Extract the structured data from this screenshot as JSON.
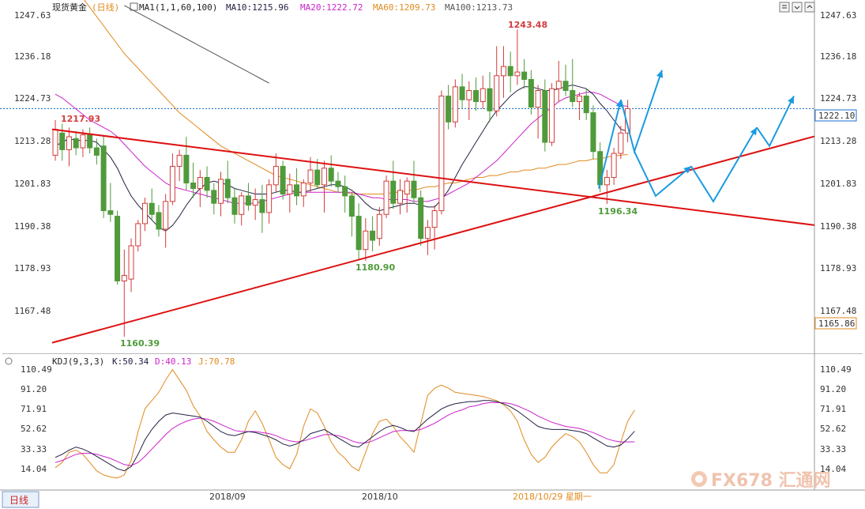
{
  "header": {
    "symbol": "现货黄金",
    "period": "(日线)",
    "ma_set": "MA1(1,1,60,100)",
    "ma10": "MA10:1215.96",
    "ma20": "MA20:1222.72",
    "ma60": "MA60:1209.73",
    "ma100": "MA100:1213.73"
  },
  "kdj_header": {
    "name": "KDJ(9,3,3)",
    "k": "K:50.34",
    "d": "D:40.13",
    "j": "J:70.78"
  },
  "price_axis_labels": [
    "1247.63",
    "1236.18",
    "1224.73",
    "1213.28",
    "1201.83",
    "1190.38",
    "1178.93",
    "1167.48"
  ],
  "current_price": "1222.10",
  "lower_price_tag": "1165.86",
  "kdj_axis_labels": [
    "110.49",
    "91.20",
    "71.91",
    "52.62",
    "33.33",
    "14.04"
  ],
  "date_labels": [
    "2018/09",
    "2018/10"
  ],
  "cursor_date": "2018/10/29 星期一",
  "bottom_tab": "日线",
  "watermark": "FX678 汇通网",
  "annotations": {
    "peak": "1243.48",
    "left_high": "1217.93",
    "left_low": "1160.39",
    "mid_low": "1180.90",
    "recent_low": "1196.34"
  },
  "colors": {
    "up": "#d23c3c",
    "down": "#4f9a3a",
    "ma10": "#222244",
    "ma20": "#cc22cc",
    "ma60": "#e08a1e",
    "ma100": "#555555",
    "trendline": "#dd1111",
    "forecast": "#1a9be0",
    "current_line": "#1a6fd0"
  },
  "chart_data": {
    "type": "candlestick",
    "price_ylim": [
      1158,
      1250
    ],
    "candles": [
      {
        "o": 1209.5,
        "h": 1219.0,
        "l": 1208.0,
        "c": 1216.5
      },
      {
        "o": 1215.5,
        "h": 1218.0,
        "l": 1208.0,
        "c": 1211.0
      },
      {
        "o": 1211.0,
        "h": 1217.0,
        "l": 1206.5,
        "c": 1214.5
      },
      {
        "o": 1214.0,
        "h": 1216.0,
        "l": 1209.5,
        "c": 1211.5
      },
      {
        "o": 1211.5,
        "h": 1216.5,
        "l": 1209.0,
        "c": 1215.0
      },
      {
        "o": 1215.0,
        "h": 1217.0,
        "l": 1210.0,
        "c": 1211.5
      },
      {
        "o": 1211.5,
        "h": 1214.0,
        "l": 1207.0,
        "c": 1209.5
      },
      {
        "o": 1212.0,
        "h": 1215.0,
        "l": 1192.5,
        "c": 1194.5
      },
      {
        "o": 1194.5,
        "h": 1202.0,
        "l": 1191.5,
        "c": 1193.5
      },
      {
        "o": 1193.0,
        "h": 1194.5,
        "l": 1174.5,
        "c": 1175.5
      },
      {
        "o": 1175.5,
        "h": 1184.0,
        "l": 1160.4,
        "c": 1177.0
      },
      {
        "o": 1176.0,
        "h": 1187.0,
        "l": 1172.5,
        "c": 1185.0
      },
      {
        "o": 1185.0,
        "h": 1192.0,
        "l": 1183.5,
        "c": 1191.0
      },
      {
        "o": 1191.0,
        "h": 1198.0,
        "l": 1189.0,
        "c": 1196.5
      },
      {
        "o": 1196.5,
        "h": 1200.5,
        "l": 1192.0,
        "c": 1193.5
      },
      {
        "o": 1194.0,
        "h": 1196.0,
        "l": 1187.5,
        "c": 1189.5
      },
      {
        "o": 1189.5,
        "h": 1199.0,
        "l": 1184.5,
        "c": 1197.0
      },
      {
        "o": 1197.0,
        "h": 1210.0,
        "l": 1196.0,
        "c": 1206.5
      },
      {
        "o": 1206.5,
        "h": 1211.0,
        "l": 1202.5,
        "c": 1209.5
      },
      {
        "o": 1209.5,
        "h": 1214.5,
        "l": 1200.0,
        "c": 1202.0
      },
      {
        "o": 1202.0,
        "h": 1207.5,
        "l": 1198.0,
        "c": 1200.5
      },
      {
        "o": 1200.5,
        "h": 1205.5,
        "l": 1195.5,
        "c": 1203.5
      },
      {
        "o": 1203.5,
        "h": 1206.5,
        "l": 1198.0,
        "c": 1200.0
      },
      {
        "o": 1200.0,
        "h": 1202.0,
        "l": 1193.5,
        "c": 1196.5
      },
      {
        "o": 1196.5,
        "h": 1205.0,
        "l": 1193.0,
        "c": 1203.0
      },
      {
        "o": 1203.0,
        "h": 1208.0,
        "l": 1196.5,
        "c": 1198.0
      },
      {
        "o": 1198.0,
        "h": 1200.5,
        "l": 1191.0,
        "c": 1193.5
      },
      {
        "o": 1193.5,
        "h": 1199.5,
        "l": 1190.5,
        "c": 1198.5
      },
      {
        "o": 1198.5,
        "h": 1202.0,
        "l": 1194.5,
        "c": 1196.0
      },
      {
        "o": 1196.0,
        "h": 1200.5,
        "l": 1192.0,
        "c": 1197.5
      },
      {
        "o": 1197.5,
        "h": 1201.5,
        "l": 1188.5,
        "c": 1194.0
      },
      {
        "o": 1194.0,
        "h": 1203.0,
        "l": 1191.0,
        "c": 1201.5
      },
      {
        "o": 1201.5,
        "h": 1210.0,
        "l": 1199.5,
        "c": 1206.5
      },
      {
        "o": 1206.5,
        "h": 1208.0,
        "l": 1197.5,
        "c": 1199.0
      },
      {
        "o": 1199.0,
        "h": 1204.5,
        "l": 1194.0,
        "c": 1201.5
      },
      {
        "o": 1201.5,
        "h": 1206.0,
        "l": 1196.0,
        "c": 1198.5
      },
      {
        "o": 1198.5,
        "h": 1203.0,
        "l": 1195.5,
        "c": 1202.0
      },
      {
        "o": 1202.0,
        "h": 1209.0,
        "l": 1199.5,
        "c": 1205.5
      },
      {
        "o": 1205.5,
        "h": 1208.5,
        "l": 1200.5,
        "c": 1201.5
      },
      {
        "o": 1201.5,
        "h": 1208.0,
        "l": 1194.0,
        "c": 1206.0
      },
      {
        "o": 1206.0,
        "h": 1209.5,
        "l": 1201.0,
        "c": 1202.5
      },
      {
        "o": 1202.5,
        "h": 1205.0,
        "l": 1199.5,
        "c": 1201.0
      },
      {
        "o": 1201.0,
        "h": 1204.0,
        "l": 1194.0,
        "c": 1198.5
      },
      {
        "o": 1198.5,
        "h": 1199.5,
        "l": 1187.5,
        "c": 1193.0
      },
      {
        "o": 1193.0,
        "h": 1196.5,
        "l": 1181.5,
        "c": 1184.0
      },
      {
        "o": 1184.0,
        "h": 1192.5,
        "l": 1180.9,
        "c": 1189.0
      },
      {
        "o": 1189.0,
        "h": 1193.0,
        "l": 1183.5,
        "c": 1186.5
      },
      {
        "o": 1187.0,
        "h": 1195.5,
        "l": 1185.0,
        "c": 1193.5
      },
      {
        "o": 1193.5,
        "h": 1204.0,
        "l": 1192.5,
        "c": 1202.5
      },
      {
        "o": 1202.5,
        "h": 1208.0,
        "l": 1195.0,
        "c": 1196.5
      },
      {
        "o": 1196.5,
        "h": 1203.0,
        "l": 1193.5,
        "c": 1200.0
      },
      {
        "o": 1199.0,
        "h": 1203.5,
        "l": 1194.0,
        "c": 1202.5
      },
      {
        "o": 1202.5,
        "h": 1208.0,
        "l": 1196.5,
        "c": 1198.0
      },
      {
        "o": 1198.0,
        "h": 1200.0,
        "l": 1185.0,
        "c": 1187.0
      },
      {
        "o": 1187.0,
        "h": 1192.0,
        "l": 1182.5,
        "c": 1190.0
      },
      {
        "o": 1190.0,
        "h": 1196.0,
        "l": 1184.0,
        "c": 1194.5
      },
      {
        "o": 1194.5,
        "h": 1227.0,
        "l": 1193.5,
        "c": 1225.5
      },
      {
        "o": 1225.5,
        "h": 1228.5,
        "l": 1216.5,
        "c": 1218.5
      },
      {
        "o": 1218.5,
        "h": 1230.0,
        "l": 1217.0,
        "c": 1228.0
      },
      {
        "o": 1228.0,
        "h": 1231.5,
        "l": 1222.0,
        "c": 1224.5
      },
      {
        "o": 1224.5,
        "h": 1229.5,
        "l": 1219.0,
        "c": 1227.0
      },
      {
        "o": 1227.0,
        "h": 1230.5,
        "l": 1221.5,
        "c": 1224.0
      },
      {
        "o": 1224.0,
        "h": 1231.0,
        "l": 1222.0,
        "c": 1227.5
      },
      {
        "o": 1227.5,
        "h": 1232.0,
        "l": 1218.5,
        "c": 1221.5
      },
      {
        "o": 1221.5,
        "h": 1239.0,
        "l": 1220.0,
        "c": 1231.0
      },
      {
        "o": 1231.0,
        "h": 1239.0,
        "l": 1225.0,
        "c": 1233.5
      },
      {
        "o": 1233.5,
        "h": 1237.5,
        "l": 1226.5,
        "c": 1231.0
      },
      {
        "o": 1231.0,
        "h": 1243.5,
        "l": 1228.5,
        "c": 1232.0
      },
      {
        "o": 1232.0,
        "h": 1235.5,
        "l": 1227.5,
        "c": 1230.0
      },
      {
        "o": 1230.0,
        "h": 1232.5,
        "l": 1220.5,
        "c": 1222.5
      },
      {
        "o": 1222.5,
        "h": 1228.5,
        "l": 1214.0,
        "c": 1227.0
      },
      {
        "o": 1227.0,
        "h": 1230.0,
        "l": 1210.5,
        "c": 1213.0
      },
      {
        "o": 1213.0,
        "h": 1229.0,
        "l": 1212.0,
        "c": 1227.5
      },
      {
        "o": 1227.5,
        "h": 1235.0,
        "l": 1224.0,
        "c": 1229.5
      },
      {
        "o": 1229.5,
        "h": 1234.0,
        "l": 1225.5,
        "c": 1227.0
      },
      {
        "o": 1227.0,
        "h": 1235.5,
        "l": 1222.5,
        "c": 1224.0
      },
      {
        "o": 1224.0,
        "h": 1226.5,
        "l": 1219.0,
        "c": 1225.5
      },
      {
        "o": 1225.5,
        "h": 1227.5,
        "l": 1219.0,
        "c": 1221.0
      },
      {
        "o": 1221.0,
        "h": 1223.0,
        "l": 1208.5,
        "c": 1210.5
      },
      {
        "o": 1210.5,
        "h": 1213.0,
        "l": 1199.5,
        "c": 1201.5
      },
      {
        "o": 1201.5,
        "h": 1205.5,
        "l": 1196.3,
        "c": 1203.5
      },
      {
        "o": 1203.5,
        "h": 1211.5,
        "l": 1201.5,
        "c": 1210.0
      },
      {
        "o": 1210.0,
        "h": 1217.5,
        "l": 1208.5,
        "c": 1215.5
      },
      {
        "o": 1215.5,
        "h": 1224.5,
        "l": 1213.0,
        "c": 1222.1
      }
    ],
    "ma10": [
      1212,
      1213,
      1214,
      1213.5,
      1213.5,
      1213.5,
      1213,
      1211,
      1209,
      1206,
      1202,
      1198.5,
      1196,
      1194,
      1192,
      1190,
      1189,
      1190.5,
      1193,
      1196,
      1198.5,
      1200.5,
      1202,
      1202.5,
      1202,
      1201.5,
      1200.5,
      1200,
      1199.5,
      1199,
      1199,
      1199,
      1199.5,
      1200,
      1200,
      1199.5,
      1199.5,
      1200,
      1200.5,
      1201,
      1201.5,
      1201.5,
      1201,
      1200,
      1198.5,
      1196.5,
      1195,
      1194.5,
      1195,
      1195.5,
      1196,
      1196.5,
      1196.5,
      1196,
      1195.5,
      1195.5,
      1197.5,
      1200,
      1203.5,
      1207,
      1210,
      1213,
      1216,
      1219,
      1221.5,
      1223.5,
      1225.5,
      1227,
      1228,
      1228,
      1227.5,
      1227,
      1227,
      1227.5,
      1228,
      1228.5,
      1228,
      1227.5,
      1226,
      1223.5,
      1221.5,
      1219,
      1216.5,
      1216
    ],
    "ma20": [
      1226,
      1225,
      1223.5,
      1222,
      1220.5,
      1219,
      1218,
      1217,
      1216,
      1214.5,
      1212.5,
      1210.5,
      1208.5,
      1206.5,
      1205,
      1203.5,
      1202,
      1201,
      1200.5,
      1200,
      1199.5,
      1199,
      1198.5,
      1198,
      1197.5,
      1197,
      1196.5,
      1196.5,
      1196.5,
      1196.5,
      1197,
      1197.5,
      1198,
      1198.5,
      1199,
      1199.5,
      1199.5,
      1199.5,
      1199.5,
      1199.5,
      1199.5,
      1199.5,
      1199.5,
      1199.5,
      1199,
      1198.5,
      1198,
      1198,
      1197.5,
      1197.5,
      1197.5,
      1197.5,
      1197,
      1197,
      1197,
      1197.5,
      1198,
      1199,
      1200,
      1201,
      1202,
      1203.5,
      1205,
      1206.5,
      1208,
      1210,
      1212,
      1214,
      1216,
      1218,
      1219.5,
      1221,
      1222.5,
      1224,
      1225,
      1225.5,
      1226,
      1226.5,
      1226.5,
      1226,
      1225,
      1224,
      1223,
      1222.7
    ],
    "ma60": [
      1262,
      1259.5,
      1257,
      1254.5,
      1252,
      1249.5,
      1247,
      1244.5,
      1242,
      1239.5,
      1237,
      1235,
      1233,
      1231,
      1229,
      1227,
      1225,
      1223,
      1221,
      1219.5,
      1218,
      1216.5,
      1215,
      1213.5,
      1212,
      1211,
      1210,
      1209,
      1208,
      1207,
      1206,
      1205,
      1204,
      1203.5,
      1203,
      1202.5,
      1202,
      1201.5,
      1201,
      1200.5,
      1200,
      1199.5,
      1199.5,
      1199,
      1199,
      1199,
      1199,
      1199,
      1199,
      1199.5,
      1199.5,
      1200,
      1200,
      1200.5,
      1201,
      1201,
      1201.5,
      1202,
      1202,
      1202.5,
      1203,
      1203.5,
      1203.5,
      1204,
      1204,
      1204.5,
      1205,
      1205,
      1205.5,
      1205.5,
      1206,
      1206,
      1206.5,
      1207,
      1207,
      1207.5,
      1208,
      1208,
      1208.5,
      1208.5,
      1209,
      1209.3,
      1209.5,
      1209.7
    ],
    "ma100": [
      1250,
      1249,
      1248,
      1247,
      1246,
      1245,
      1244,
      1243,
      1242,
      1241,
      1240,
      1239,
      1238,
      1237,
      1236,
      1235,
      1234,
      1233,
      1232,
      1231,
      1230,
      1229
    ],
    "kdj_ylim": [
      0,
      115
    ],
    "K": [
      25,
      28,
      32,
      35,
      33,
      30,
      26,
      22,
      18,
      14,
      12,
      16,
      28,
      42,
      52,
      60,
      66,
      68,
      67,
      66,
      65,
      64,
      60,
      55,
      50,
      47,
      46,
      48,
      50,
      49,
      47,
      45,
      42,
      38,
      36,
      38,
      42,
      48,
      50,
      52,
      48,
      44,
      40,
      36,
      35,
      40,
      45,
      50,
      54,
      56,
      54,
      51,
      50,
      56,
      62,
      67,
      72,
      75,
      77,
      78,
      79,
      79,
      80,
      80,
      79,
      77,
      74,
      70,
      65,
      60,
      55,
      53,
      52,
      52,
      52,
      51,
      50,
      48,
      44,
      40,
      36,
      35,
      37,
      43,
      50.3
    ],
    "D": [
      20,
      22,
      25,
      28,
      29,
      29,
      28,
      26,
      24,
      21,
      18,
      17,
      20,
      26,
      33,
      40,
      47,
      53,
      57,
      60,
      62,
      63,
      62,
      60,
      57,
      54,
      51,
      50,
      50,
      50,
      49,
      48,
      46,
      43,
      41,
      40,
      41,
      43,
      45,
      47,
      47,
      46,
      44,
      41,
      39,
      39,
      41,
      44,
      47,
      50,
      51,
      51,
      51,
      52,
      55,
      58,
      62,
      66,
      69,
      71,
      74,
      75,
      77,
      78,
      78,
      78,
      77,
      75,
      72,
      69,
      65,
      62,
      59,
      57,
      55,
      54,
      53,
      51,
      49,
      46,
      43,
      41,
      40,
      40,
      40.1
    ],
    "J": [
      15,
      20,
      30,
      32,
      28,
      20,
      12,
      8,
      6,
      5,
      8,
      22,
      50,
      72,
      80,
      88,
      100,
      110,
      100,
      90,
      75,
      65,
      50,
      42,
      35,
      30,
      30,
      42,
      60,
      70,
      58,
      42,
      25,
      18,
      14,
      28,
      55,
      72,
      68,
      55,
      40,
      30,
      24,
      16,
      12,
      30,
      48,
      60,
      62,
      55,
      45,
      38,
      30,
      58,
      85,
      92,
      95,
      92,
      88,
      87,
      86,
      85,
      84,
      82,
      80,
      76,
      70,
      60,
      42,
      28,
      20,
      25,
      35,
      42,
      48,
      45,
      40,
      30,
      18,
      10,
      10,
      18,
      40,
      60,
      70.8
    ]
  }
}
